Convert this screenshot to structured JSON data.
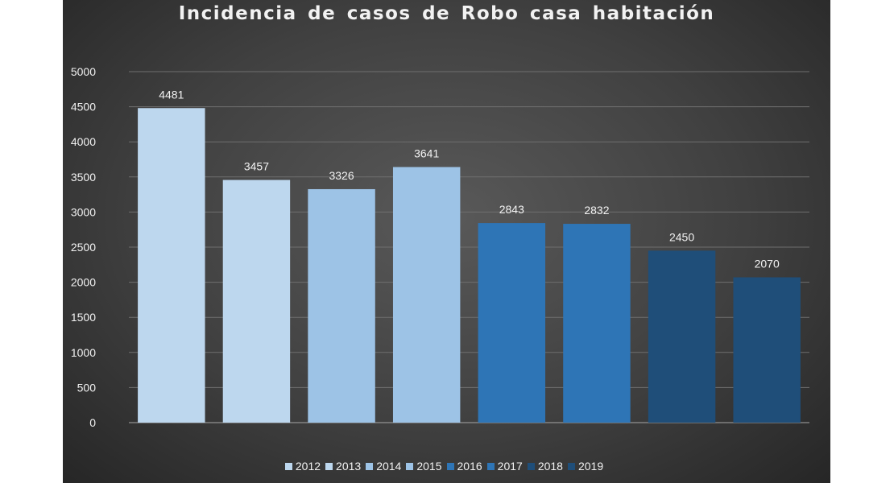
{
  "chart_data": {
    "type": "bar",
    "title": "Incidencia de casos de Robo casa habitación",
    "xlabel": "",
    "ylabel": "",
    "categories": [
      "2012",
      "2013",
      "2014",
      "2015",
      "2016",
      "2017",
      "2018",
      "2019"
    ],
    "values": [
      4481,
      3457,
      3326,
      3641,
      2843,
      2832,
      2450,
      2070
    ],
    "data_labels": [
      "4481",
      "3457",
      "3326",
      "3641",
      "2843",
      "2832",
      "2450",
      "2070"
    ],
    "colors": [
      "#bdd7ee",
      "#bdd7ee",
      "#9dc3e6",
      "#9dc3e6",
      "#2e75b6",
      "#2e75b6",
      "#1f4e79",
      "#1f4e79"
    ],
    "ylim": [
      0,
      5000
    ],
    "y_ticks": [
      "0",
      "500",
      "1000",
      "1500",
      "2000",
      "2500",
      "3000",
      "3500",
      "4000",
      "4500",
      "5000"
    ],
    "grid": true,
    "legend": {
      "position": "bottom",
      "entries": [
        "2012",
        "2013",
        "2014",
        "2015",
        "2016",
        "2017",
        "2018",
        "2019"
      ]
    },
    "background": "#404040"
  }
}
